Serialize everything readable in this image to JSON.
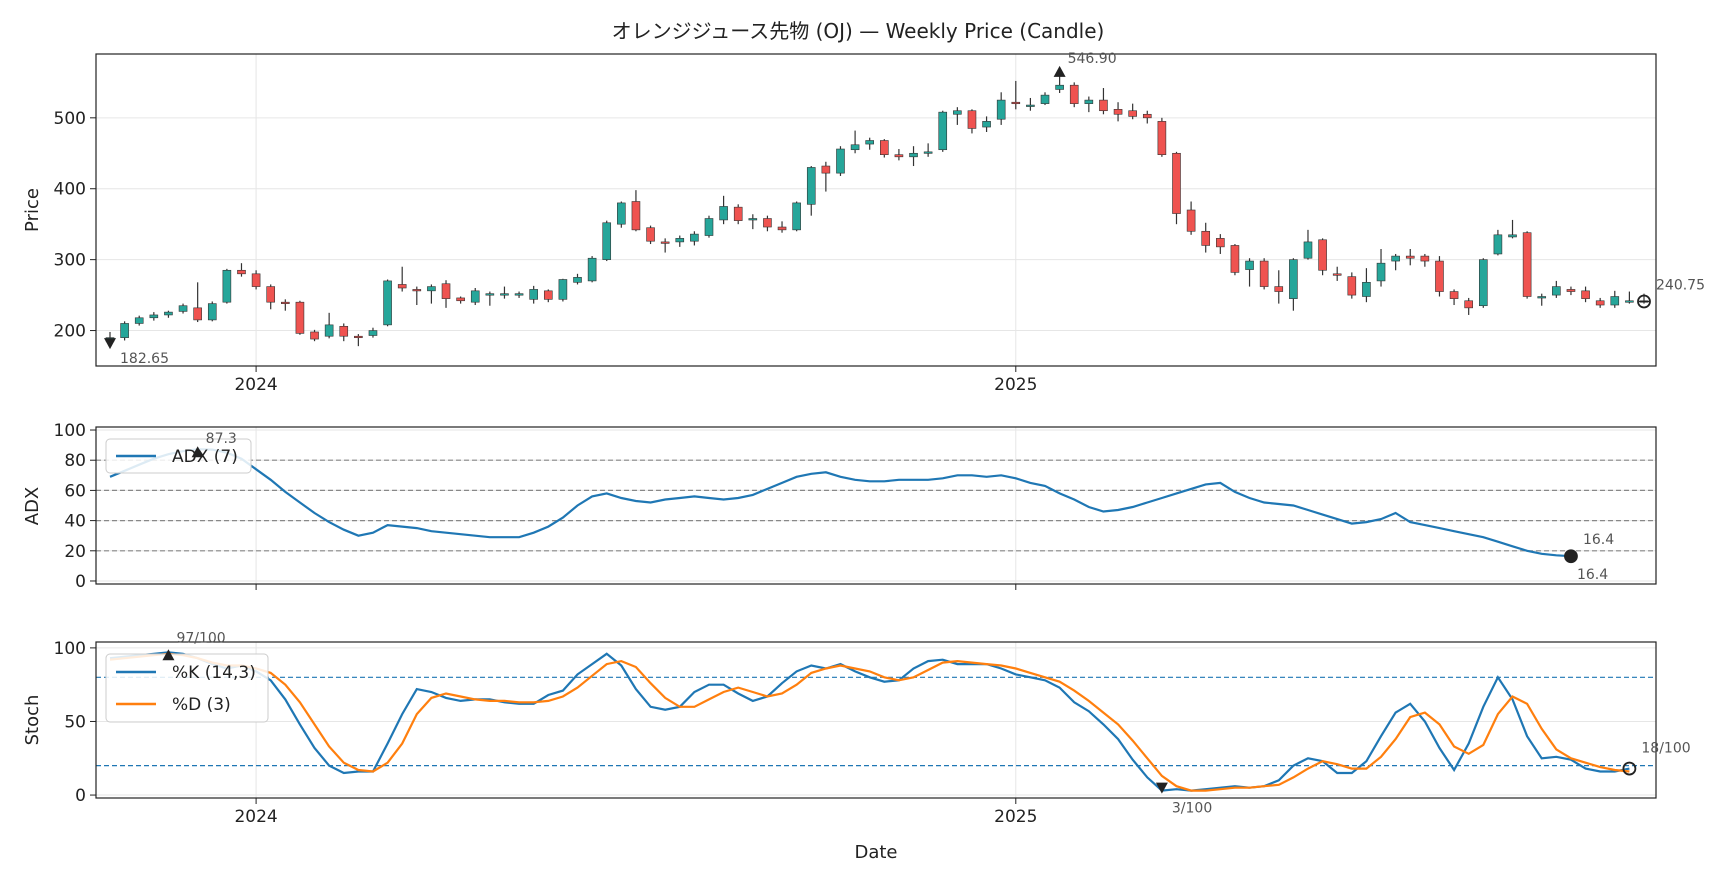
{
  "title": "オレンジジュース先物 (OJ) — Weekly Price (Candle)",
  "xlabel": "Date",
  "colors": {
    "up": "#26a69a",
    "down": "#ef5350",
    "adx": "#1f77b4",
    "k": "#1f77b4",
    "d": "#ff7f0e",
    "grid": "#e6e6e6",
    "ref": "#888888"
  },
  "chart_data": [
    {
      "type": "candlestick",
      "ylabel": "Price",
      "ylim": [
        150,
        590
      ],
      "yticks": [
        200,
        300,
        400,
        500
      ],
      "x_ticks": [
        {
          "label": "2024",
          "index": 10
        },
        {
          "label": "2025",
          "index": 62
        }
      ],
      "annotations": {
        "max_label": "546.90",
        "min_label": "182.65",
        "last_label": "240.75"
      },
      "candles": [
        [
          185,
          190,
          198,
          178
        ],
        [
          190,
          210,
          213,
          186
        ],
        [
          210,
          218,
          221,
          207
        ],
        [
          218,
          222,
          226,
          214
        ],
        [
          222,
          226,
          228,
          218
        ],
        [
          227,
          235,
          238,
          224
        ],
        [
          232,
          215,
          268,
          212
        ],
        [
          215,
          238,
          241,
          213
        ],
        [
          240,
          285,
          287,
          238
        ],
        [
          285,
          280,
          295,
          276
        ],
        [
          280,
          262,
          285,
          258
        ],
        [
          262,
          240,
          265,
          230
        ],
        [
          240,
          238,
          244,
          228
        ],
        [
          240,
          196,
          242,
          194
        ],
        [
          198,
          188,
          201,
          185
        ],
        [
          192,
          208,
          225,
          189
        ],
        [
          206,
          192,
          210,
          185
        ],
        [
          192,
          190,
          195,
          178
        ],
        [
          193,
          200,
          204,
          190
        ],
        [
          208,
          270,
          272,
          206
        ],
        [
          265,
          260,
          290,
          255
        ],
        [
          258,
          256,
          262,
          236
        ],
        [
          256,
          262,
          265,
          238
        ],
        [
          266,
          245,
          271,
          232
        ],
        [
          246,
          242,
          248,
          238
        ],
        [
          240,
          256,
          260,
          236
        ],
        [
          252,
          252,
          255,
          235
        ],
        [
          250,
          252,
          262,
          245
        ],
        [
          250,
          252,
          255,
          246
        ],
        [
          244,
          258,
          263,
          238
        ],
        [
          256,
          244,
          258,
          240
        ],
        [
          244,
          272,
          273,
          241
        ],
        [
          268,
          275,
          280,
          265
        ],
        [
          270,
          302,
          305,
          268
        ],
        [
          300,
          352,
          355,
          298
        ],
        [
          350,
          380,
          382,
          345
        ],
        [
          382,
          342,
          398,
          340
        ],
        [
          345,
          326,
          348,
          322
        ],
        [
          325,
          323,
          330,
          310
        ],
        [
          325,
          330,
          334,
          318
        ],
        [
          326,
          336,
          340,
          320
        ],
        [
          334,
          358,
          362,
          331
        ],
        [
          356,
          375,
          390,
          350
        ],
        [
          374,
          355,
          378,
          350
        ],
        [
          356,
          358,
          364,
          343
        ],
        [
          358,
          346,
          362,
          340
        ],
        [
          346,
          342,
          354,
          338
        ],
        [
          342,
          380,
          382,
          340
        ],
        [
          378,
          430,
          432,
          362
        ],
        [
          432,
          422,
          438,
          396
        ],
        [
          422,
          456,
          460,
          418
        ],
        [
          455,
          462,
          482,
          450
        ],
        [
          463,
          468,
          472,
          455
        ],
        [
          468,
          448,
          470,
          444
        ],
        [
          448,
          445,
          456,
          440
        ],
        [
          445,
          450,
          460,
          432
        ],
        [
          450,
          452,
          464,
          445
        ],
        [
          455,
          508,
          510,
          452
        ],
        [
          505,
          510,
          515,
          490
        ],
        [
          510,
          485,
          512,
          478
        ],
        [
          487,
          495,
          502,
          480
        ],
        [
          498,
          525,
          536,
          490
        ],
        [
          522,
          520,
          552,
          512
        ],
        [
          518,
          518,
          528,
          510
        ],
        [
          520,
          532,
          536,
          518
        ],
        [
          540,
          546,
          569,
          535
        ],
        [
          546,
          520,
          550,
          515
        ],
        [
          520,
          525,
          530,
          508
        ],
        [
          525,
          510,
          542,
          505
        ],
        [
          512,
          505,
          522,
          495
        ],
        [
          510,
          502,
          520,
          498
        ],
        [
          505,
          500,
          510,
          492
        ],
        [
          495,
          448,
          500,
          445
        ],
        [
          450,
          365,
          452,
          350
        ],
        [
          370,
          340,
          382,
          335
        ],
        [
          340,
          320,
          352,
          310
        ],
        [
          330,
          318,
          336,
          308
        ],
        [
          320,
          282,
          322,
          278
        ],
        [
          286,
          298,
          302,
          262
        ],
        [
          298,
          262,
          302,
          258
        ],
        [
          262,
          255,
          285,
          238
        ],
        [
          245,
          300,
          302,
          228
        ],
        [
          302,
          325,
          342,
          300
        ],
        [
          328,
          285,
          330,
          278
        ],
        [
          280,
          278,
          290,
          270
        ],
        [
          276,
          250,
          282,
          245
        ],
        [
          248,
          268,
          288,
          240
        ],
        [
          270,
          295,
          315,
          262
        ],
        [
          298,
          305,
          308,
          285
        ],
        [
          305,
          302,
          315,
          292
        ],
        [
          305,
          298,
          308,
          290
        ],
        [
          298,
          255,
          305,
          248
        ],
        [
          255,
          245,
          258,
          236
        ],
        [
          242,
          232,
          246,
          222
        ],
        [
          235,
          300,
          302,
          232
        ],
        [
          308,
          335,
          342,
          306
        ],
        [
          332,
          335,
          356,
          330
        ],
        [
          338,
          248,
          340,
          245
        ],
        [
          248,
          248,
          252,
          235
        ],
        [
          250,
          262,
          270,
          246
        ],
        [
          258,
          255,
          262,
          250
        ],
        [
          256,
          245,
          262,
          240
        ],
        [
          242,
          236,
          246,
          232
        ],
        [
          236,
          248,
          256,
          232
        ],
        [
          242,
          242,
          255,
          238
        ],
        [
          242,
          241,
          252,
          238
        ]
      ]
    },
    {
      "type": "line",
      "ylabel": "ADX",
      "ylim": [
        -2,
        102
      ],
      "yticks": [
        0,
        20,
        40,
        60,
        80,
        100
      ],
      "hlines": [
        20,
        40,
        60,
        80
      ],
      "series": [
        {
          "name": "ADX (7)",
          "values": [
            69,
            73,
            77,
            81,
            84,
            86,
            87.3,
            87,
            85,
            81,
            74,
            67,
            59,
            52,
            45,
            39,
            34,
            30,
            32,
            37,
            36,
            35,
            33,
            32,
            31,
            30,
            29,
            29,
            29,
            32,
            36,
            42,
            50,
            56,
            58,
            55,
            53,
            52,
            54,
            55,
            56,
            55,
            54,
            55,
            57,
            61,
            65,
            69,
            71,
            72,
            69,
            67,
            66,
            66,
            67,
            67,
            67,
            68,
            70,
            70,
            69,
            70,
            68,
            65,
            63,
            58,
            54,
            49,
            46,
            47,
            49,
            52,
            55,
            58,
            61,
            64,
            65,
            59,
            55,
            52,
            51,
            50,
            47,
            44,
            41,
            38,
            39,
            41,
            45,
            39,
            37,
            35,
            33,
            31,
            29,
            26,
            23,
            20,
            18,
            17,
            16.4
          ]
        }
      ],
      "annotations": {
        "max_label": "87.3",
        "last_label": "16.4",
        "last_label_2": "16.4"
      }
    },
    {
      "type": "line",
      "ylabel": "Stoch",
      "ylim": [
        -2,
        104
      ],
      "yticks": [
        0,
        50,
        100
      ],
      "hlines": [
        20,
        80
      ],
      "series": [
        {
          "name": "%K (14,3)",
          "values": [
            93,
            94,
            95,
            96,
            97,
            96,
            93,
            89,
            86,
            88,
            84,
            78,
            65,
            48,
            32,
            20,
            15,
            16,
            16,
            35,
            55,
            72,
            70,
            66,
            64,
            65,
            65,
            63,
            62,
            62,
            68,
            71,
            82,
            89,
            96,
            88,
            72,
            60,
            58,
            60,
            70,
            75,
            75,
            69,
            64,
            67,
            76,
            84,
            88,
            86,
            89,
            84,
            80,
            77,
            78,
            86,
            91,
            92,
            89,
            89,
            89,
            86,
            82,
            80,
            78,
            73,
            63,
            57,
            48,
            38,
            24,
            12,
            3,
            4,
            3,
            4,
            5,
            6,
            5,
            6,
            10,
            20,
            25,
            23,
            15,
            15,
            23,
            40,
            56,
            62,
            50,
            32,
            17,
            35,
            60,
            80,
            65,
            40,
            25,
            26,
            24,
            18,
            16,
            16,
            18
          ]
        },
        {
          "name": "%D (3)",
          "values": [
            92,
            93,
            94,
            95,
            96,
            95,
            93,
            90,
            88,
            88,
            86,
            83,
            75,
            63,
            48,
            33,
            22,
            17,
            16,
            22,
            35,
            55,
            66,
            69,
            67,
            65,
            64,
            64,
            63,
            63,
            64,
            67,
            73,
            81,
            89,
            91,
            87,
            76,
            66,
            60,
            60,
            65,
            70,
            73,
            70,
            67,
            69,
            75,
            83,
            86,
            88,
            86,
            84,
            80,
            78,
            80,
            85,
            90,
            91,
            90,
            89,
            88,
            86,
            83,
            80,
            77,
            71,
            64,
            56,
            48,
            37,
            25,
            13,
            6,
            3,
            3,
            4,
            5,
            5,
            6,
            7,
            12,
            18,
            23,
            21,
            18,
            18,
            26,
            38,
            53,
            56,
            48,
            33,
            28,
            34,
            55,
            67,
            62,
            45,
            31,
            25,
            22,
            19,
            17,
            16
          ]
        }
      ],
      "annotations": {
        "max_label": "97/100",
        "min_label": "3/100",
        "last_label": "18/100"
      }
    }
  ]
}
